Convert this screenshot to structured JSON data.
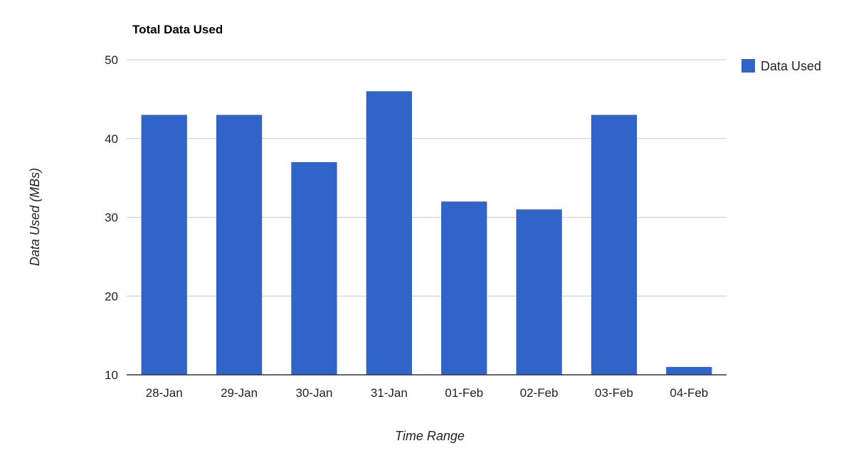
{
  "chart_data": {
    "type": "bar",
    "title": "Total Data Used",
    "xlabel": "Time Range",
    "ylabel": "Data Used (MBs)",
    "categories": [
      "28-Jan",
      "29-Jan",
      "30-Jan",
      "31-Jan",
      "01-Feb",
      "02-Feb",
      "03-Feb",
      "04-Feb"
    ],
    "series": [
      {
        "name": "Data Used",
        "values": [
          43,
          43,
          37,
          46,
          32,
          31,
          43,
          11
        ]
      }
    ],
    "ylim": [
      10,
      50
    ],
    "yticks": [
      "10",
      "20",
      "30",
      "40",
      "50"
    ],
    "grid": true,
    "legend_position": "right",
    "color": "#3164c9"
  }
}
